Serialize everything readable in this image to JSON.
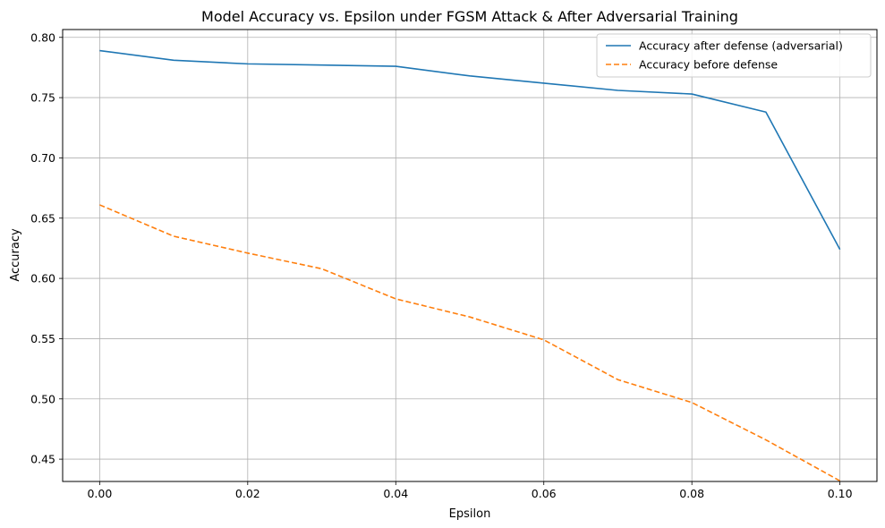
{
  "chart_data": {
    "type": "line",
    "title": "Model Accuracy vs. Epsilon under FGSM Attack & After Adversarial Training",
    "xlabel": "Epsilon",
    "ylabel": "Accuracy",
    "xlim": [
      -0.005,
      0.105
    ],
    "ylim": [
      0.4315,
      0.8065
    ],
    "xticks": [
      0.0,
      0.02,
      0.04,
      0.06,
      0.08,
      0.1
    ],
    "xtick_labels": [
      "0.00",
      "0.02",
      "0.04",
      "0.06",
      "0.08",
      "0.10"
    ],
    "yticks": [
      0.45,
      0.5,
      0.55,
      0.6,
      0.65,
      0.7,
      0.75,
      0.8
    ],
    "ytick_labels": [
      "0.45",
      "0.50",
      "0.55",
      "0.60",
      "0.65",
      "0.70",
      "0.75",
      "0.80"
    ],
    "grid": true,
    "legend_position": "top-right",
    "x": [
      0.0,
      0.01,
      0.02,
      0.03,
      0.04,
      0.05,
      0.06,
      0.07,
      0.08,
      0.09,
      0.1
    ],
    "series": [
      {
        "name": "Accuracy after defense (adversarial)",
        "values": [
          0.789,
          0.781,
          0.778,
          0.777,
          0.776,
          0.768,
          0.762,
          0.756,
          0.753,
          0.738,
          0.624
        ],
        "color": "#1f77b4",
        "style": "solid"
      },
      {
        "name": "Accuracy before defense",
        "values": [
          0.661,
          0.635,
          0.621,
          0.608,
          0.583,
          0.568,
          0.549,
          0.516,
          0.497,
          0.466,
          0.432
        ],
        "color": "#ff7f0e",
        "style": "dashed"
      }
    ]
  }
}
